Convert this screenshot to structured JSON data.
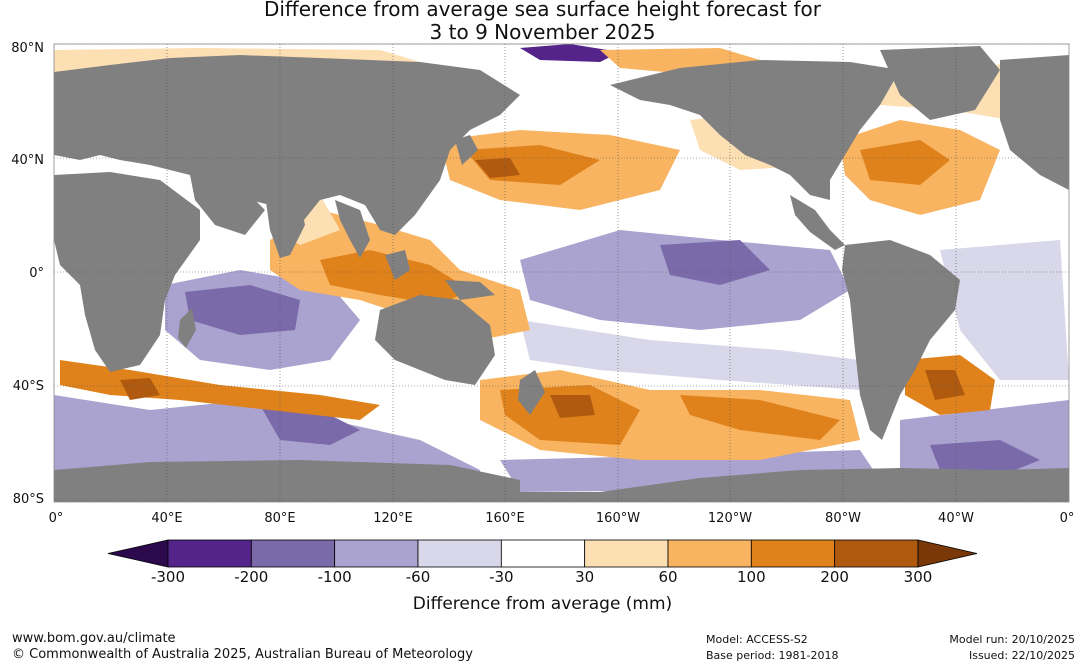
{
  "title": {
    "line1": "Difference from average sea surface height forecast for",
    "line2": "3 to 9 November 2025"
  },
  "map": {
    "lat_labels": [
      "80°N",
      "40°N",
      "0°",
      "40°S",
      "80°S"
    ],
    "lon_labels": [
      "0°",
      "40°E",
      "80°E",
      "120°E",
      "160°E",
      "160°W",
      "120°W",
      "80°W",
      "40°W",
      "0°"
    ],
    "land_color": "#808080",
    "ice_color": "#ffffff"
  },
  "colorbar": {
    "ticks": [
      "-300",
      "-200",
      "-100",
      "-60",
      "-30",
      "30",
      "60",
      "100",
      "200",
      "300"
    ],
    "colors": [
      "#2d0a4e",
      "#54248a",
      "#7a6aaa",
      "#aaa3cf",
      "#d8d8ea",
      "#ffffff",
      "#fddfb4",
      "#f8b460",
      "#e0821b",
      "#b05a10",
      "#7a3808"
    ],
    "title": "Difference from average (mm)"
  },
  "footer": {
    "url": "www.bom.gov.au/climate",
    "copyright": "© Commonwealth of Australia 2025, Australian Bureau of Meteorology",
    "model": "Model: ACCESS-S2",
    "base_period": "Base period: 1981-2018",
    "model_run": "Model run: 20/10/2025",
    "issued": "Issued: 22/10/2025"
  }
}
